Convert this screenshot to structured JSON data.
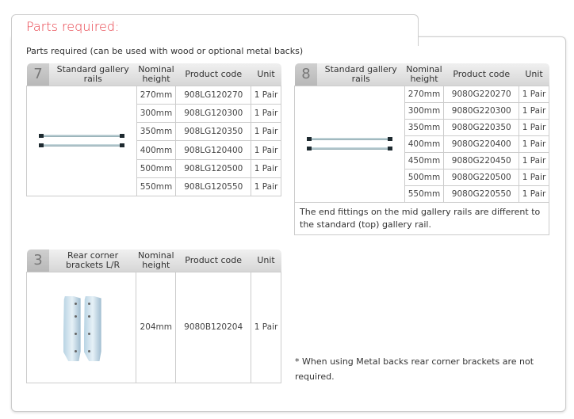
{
  "title": "Parts required:",
  "subtitle": "Parts required (can be used with wood or optional metal backs)",
  "headers": {
    "height": "Nominal height",
    "code": "Product code",
    "unit": "Unit"
  },
  "table7": {
    "number": "7",
    "name": "Standard gallery rails",
    "image_icon": "gallery-rails-image",
    "rows": [
      {
        "height": "270mm",
        "code": "908LG120270",
        "unit": "1 Pair"
      },
      {
        "height": "300mm",
        "code": "908LG120300",
        "unit": "1 Pair"
      },
      {
        "height": "350mm",
        "code": "908LG120350",
        "unit": "1 Pair"
      },
      {
        "height": "400mm",
        "code": "908LG120400",
        "unit": "1 Pair"
      },
      {
        "height": "500mm",
        "code": "908LG120500",
        "unit": "1 Pair"
      },
      {
        "height": "550mm",
        "code": "908LG120550",
        "unit": "1 Pair"
      }
    ]
  },
  "table8": {
    "number": "8",
    "name": "Standard gallery rails",
    "image_icon": "gallery-rails-image",
    "rows": [
      {
        "height": "270mm",
        "code": "9080G220270",
        "unit": "1 Pair"
      },
      {
        "height": "300mm",
        "code": "9080G220300",
        "unit": "1 Pair"
      },
      {
        "height": "350mm",
        "code": "9080G220350",
        "unit": "1 Pair"
      },
      {
        "height": "400mm",
        "code": "9080G220400",
        "unit": "1 Pair"
      },
      {
        "height": "450mm",
        "code": "9080G220450",
        "unit": "1 Pair"
      },
      {
        "height": "500mm",
        "code": "9080G220500",
        "unit": "1 Pair"
      },
      {
        "height": "550mm",
        "code": "9080G220550",
        "unit": "1 Pair"
      }
    ],
    "note": "The end fittings on the mid gallery rails are different to the standard (top) gallery rail."
  },
  "table3": {
    "number": "3",
    "name": "Rear corner brackets L/R",
    "image_icon": "corner-brackets-image",
    "rows": [
      {
        "height": "204mm",
        "code": "9080B120204",
        "unit": "1 Pair"
      }
    ]
  },
  "footnote": "* When using Metal backs rear corner brackets are not required.",
  "colors": {
    "title": "#e8404a",
    "border": "#cccccc",
    "header_bg": "#dcdcdc",
    "number_bg": "#c4c4c4"
  }
}
